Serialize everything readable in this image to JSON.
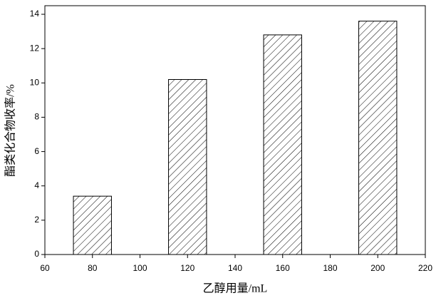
{
  "chart_data": {
    "type": "bar",
    "x_label": "乙醇用量/mL",
    "y_label": "酯类化合物收率/%",
    "x": [
      80,
      120,
      160,
      200
    ],
    "values": [
      3.4,
      10.2,
      12.8,
      13.6
    ],
    "color": "#000000",
    "xlim": [
      60,
      220
    ],
    "xticks": [
      60,
      80,
      100,
      120,
      140,
      160,
      180,
      200,
      220
    ],
    "ylim": [
      0,
      14.5
    ],
    "yticks": [
      0,
      2,
      4,
      6,
      8,
      10,
      12,
      14
    ]
  }
}
